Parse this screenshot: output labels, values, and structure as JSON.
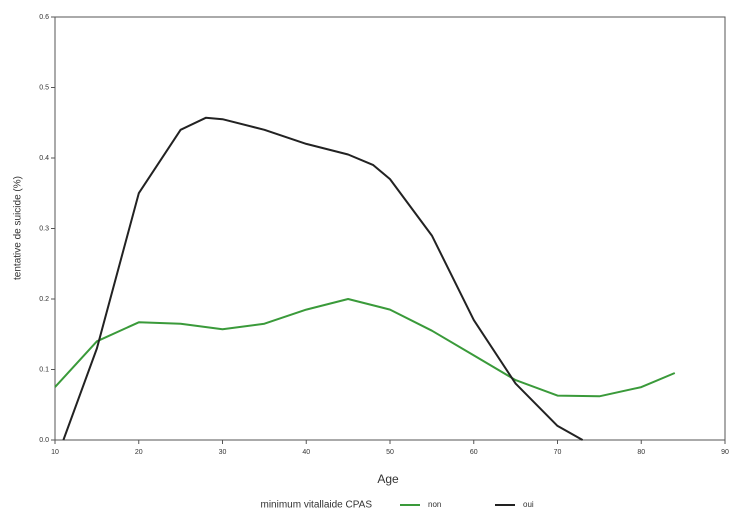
{
  "chart_data": {
    "type": "line",
    "x_label": "Age",
    "y_label": "tentative de suicide (%)",
    "legend_title": "minimum vitallaide CPAS",
    "xlim": [
      10,
      90
    ],
    "xticks": [
      10,
      20,
      30,
      40,
      50,
      60,
      70,
      80,
      90
    ],
    "ylim": [
      0,
      0.6
    ],
    "yticks": [
      {
        "value": 0,
        "label": "0.0"
      },
      {
        "value": 0.1,
        "label": "0.1"
      },
      {
        "value": 0.2,
        "label": "0.2"
      },
      {
        "value": 0.3,
        "label": "0.3"
      },
      {
        "value": 0.4,
        "label": "0.4"
      },
      {
        "value": 0.5,
        "label": "0.5"
      },
      {
        "value": 0.6,
        "label": "0.6"
      }
    ],
    "series": [
      {
        "name": "non",
        "color": "#3a9a3a",
        "x": [
          10,
          15,
          20,
          25,
          30,
          35,
          40,
          45,
          50,
          55,
          60,
          65,
          70,
          75,
          80,
          84
        ],
        "values": [
          0.075,
          0.14,
          0.167,
          0.165,
          0.157,
          0.165,
          0.185,
          0.2,
          0.185,
          0.155,
          0.12,
          0.085,
          0.063,
          0.062,
          0.075,
          0.095
        ]
      },
      {
        "name": "oui",
        "color": "#222222",
        "x": [
          11,
          15,
          20,
          25,
          28,
          30,
          35,
          40,
          45,
          48,
          50,
          55,
          60,
          65,
          70,
          73
        ],
        "values": [
          0,
          0.13,
          0.35,
          0.44,
          0.457,
          0.455,
          0.44,
          0.42,
          0.405,
          0.39,
          0.37,
          0.29,
          0.17,
          0.08,
          0.02,
          0
        ]
      }
    ]
  }
}
